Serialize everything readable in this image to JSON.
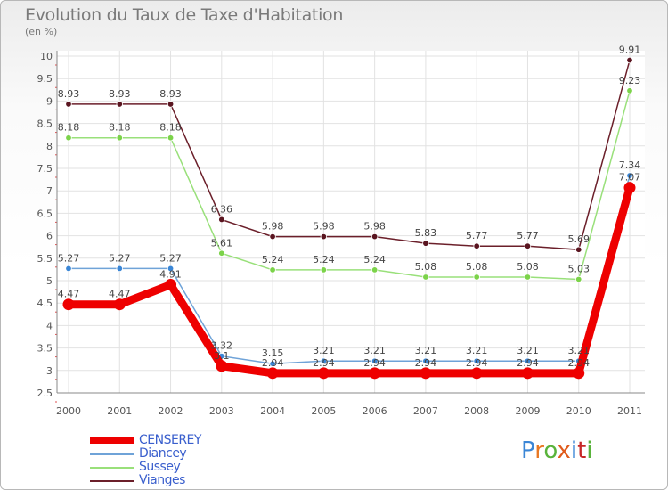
{
  "title": "Evolution du Taux de Taxe d'Habitation",
  "subtitle": "(en %)",
  "logo_text": "Proxiti",
  "chart_data": {
    "type": "line",
    "categories": [
      "2000",
      "2001",
      "2002",
      "2003",
      "2004",
      "2005",
      "2006",
      "2007",
      "2008",
      "2009",
      "2010",
      "2011"
    ],
    "ylim": [
      2.5,
      10
    ],
    "yticks": [
      "2.5",
      "3",
      "3.5",
      "4",
      "4.5",
      "5",
      "5.5",
      "6",
      "6.5",
      "7",
      "7.5",
      "8",
      "8.5",
      "9",
      "9.5",
      "10"
    ],
    "grid": true,
    "legend_position": "bottom-left",
    "series": [
      {
        "name": "Vianges",
        "color": "#6b1f2a",
        "dot": "#5a1520",
        "values": [
          8.93,
          8.93,
          8.93,
          6.36,
          5.98,
          5.98,
          5.98,
          5.83,
          5.77,
          5.77,
          5.69,
          9.91
        ],
        "labels": [
          "8.93",
          "8.93",
          "8.93",
          "6.36",
          "5.98",
          "5.98",
          "5.98",
          "5.83",
          "5.77",
          "5.77",
          "5.69",
          "9.91"
        ]
      },
      {
        "name": "Sussey",
        "color": "#99e07a",
        "dot": "#7cd34a",
        "values": [
          8.18,
          8.18,
          8.18,
          5.61,
          5.24,
          5.24,
          5.24,
          5.08,
          5.08,
          5.08,
          5.03,
          9.23
        ],
        "labels": [
          "8.18",
          "8.18",
          "8.18",
          "5.61",
          "5.24",
          "5.24",
          "5.24",
          "5.08",
          "5.08",
          "5.08",
          "5.03",
          "9.23"
        ]
      },
      {
        "name": "Diancey",
        "color": "#6fa3d8",
        "dot": "#3a86d6",
        "values": [
          5.27,
          5.27,
          5.27,
          3.32,
          3.15,
          3.21,
          3.21,
          3.21,
          3.21,
          3.21,
          3.21,
          7.34
        ],
        "labels": [
          "5.27",
          "5.27",
          "5.27",
          "3.32",
          "3.15",
          "3.21",
          "3.21",
          "3.21",
          "3.21",
          "3.21",
          "3.21",
          "7.34"
        ]
      },
      {
        "name": "CENSEREY",
        "color": "#ee0000",
        "dot": "#ee0000",
        "values": [
          4.47,
          4.47,
          4.91,
          3.1,
          2.94,
          2.94,
          2.94,
          2.94,
          2.94,
          2.94,
          2.94,
          7.07
        ],
        "labels": [
          "4.47",
          "4.47",
          "4.91",
          "3.1",
          "2.94",
          "2.94",
          "2.94",
          "2.94",
          "2.94",
          "2.94",
          "2.94",
          "7.07"
        ]
      }
    ]
  },
  "legend": [
    {
      "name": "CENSEREY",
      "color": "#ee0000"
    },
    {
      "name": "Diancey",
      "color": "#6fa3d8"
    },
    {
      "name": "Sussey",
      "color": "#99e07a"
    },
    {
      "name": "Vianges",
      "color": "#6b1f2a"
    }
  ]
}
